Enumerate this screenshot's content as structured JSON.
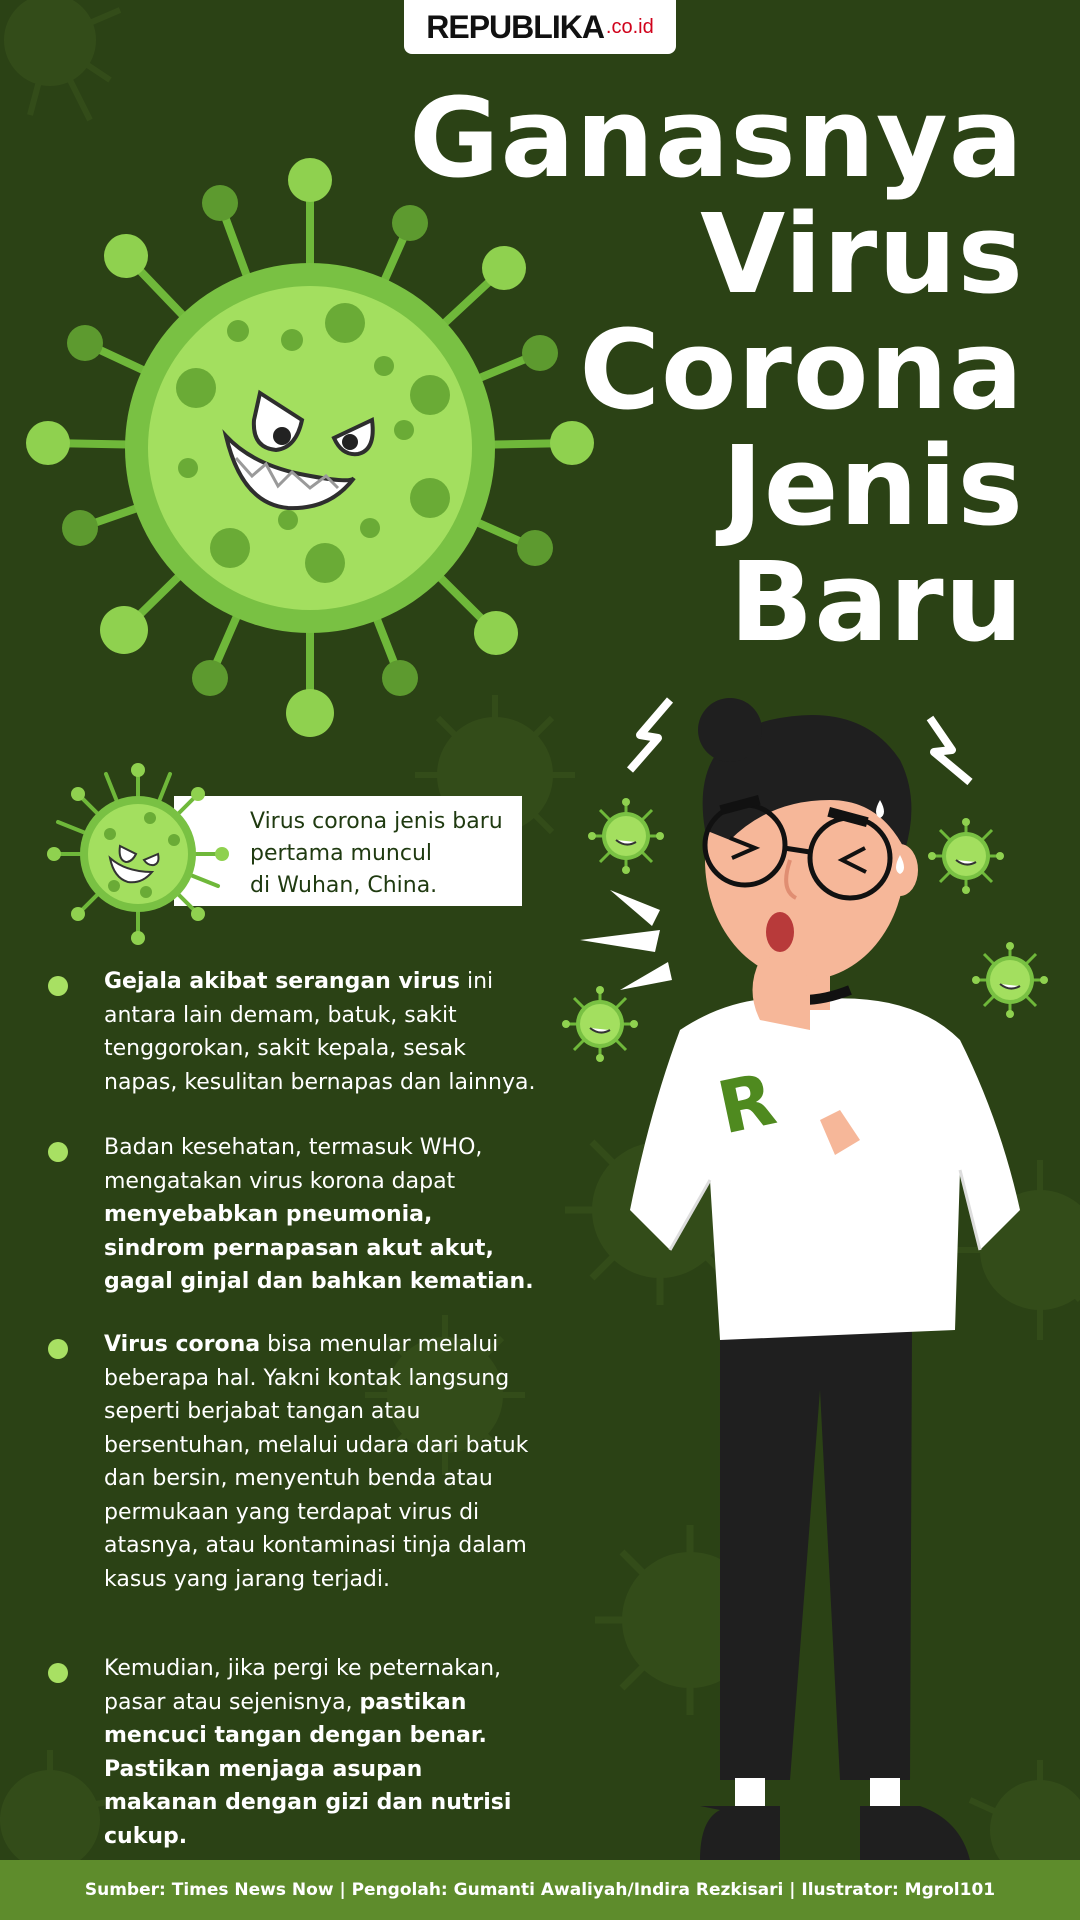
{
  "logo": {
    "main": "REPUBLIKA",
    "suffix": ".co.id"
  },
  "title": {
    "line1": "Ganasnya",
    "line2": "Virus",
    "line3": "Corona",
    "line4": "Jenis",
    "line5": "Baru"
  },
  "intro": {
    "line1": "Virus corona jenis baru",
    "line2": "pertama muncul",
    "line3": "di Wuhan, China."
  },
  "bullets": {
    "b1": {
      "bold": "Gejala akibat serangan virus",
      "rest": " ini antara lain demam, batuk, sakit tenggorokan, sakit kepala, sesak napas, kesulitan bernapas dan lainnya."
    },
    "b2": {
      "lead": "Badan kesehatan, termasuk WHO, mengatakan virus korona dapat ",
      "bold": "menyebabkan pneumonia, sindrom pernapasan akut akut, gagal ginjal dan bahkan kematian."
    },
    "b3": {
      "bold": "Virus corona",
      "rest": " bisa menular melalui beberapa hal. Yakni kontak langsung seperti berjabat tangan atau bersentuhan, melalui udara dari batuk dan bersin, menyentuh benda atau permukaan yang terdapat virus di atasnya, atau kontaminasi tinja dalam kasus yang jarang terjadi."
    },
    "b4": {
      "lead": "Kemudian, jika pergi ke peternakan, pasar atau sejenisnya, ",
      "bold": "pastikan mencuci tangan dengan benar. Pastikan menjaga asupan makanan dengan gizi dan nutrisi cukup."
    }
  },
  "shirt_letter": "R",
  "footer": "Sumber: Times News Now | Pengolah: Gumanti Awaliyah/Indira Rezkisari | Ilustrator: Mgrol101",
  "colors": {
    "background": "#2b4215",
    "accent_green": "#8fd14f",
    "footer": "#5e8c2c"
  }
}
